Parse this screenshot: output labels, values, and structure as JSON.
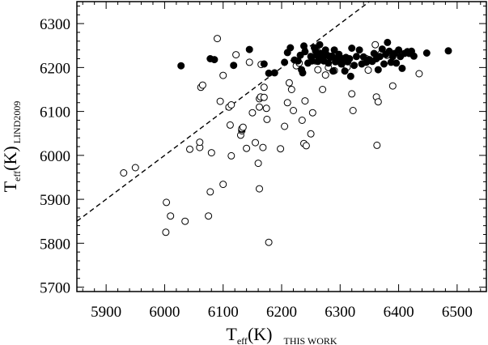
{
  "chart_data": {
    "type": "scatter",
    "xlabel": {
      "main": "T",
      "sub": "eff",
      "rest": "(K)",
      "suffix": "THIS WORK"
    },
    "ylabel": {
      "main": "T",
      "sub": "eff",
      "rest": "(K)",
      "suffix": "LIND2009"
    },
    "xlim": [
      5850,
      6550
    ],
    "ylim": [
      5690,
      6350
    ],
    "xticks": [
      5900,
      6000,
      6100,
      6200,
      6300,
      6400,
      6500
    ],
    "yticks": [
      5700,
      5800,
      5900,
      6000,
      6100,
      6200,
      6300
    ],
    "grid": false,
    "reference_line": {
      "style": "dashed",
      "slope": 1,
      "intercept": 0
    },
    "series": [
      {
        "marker": "open-circle",
        "points": [
          [
            5930,
            5960
          ],
          [
            5950,
            5972
          ],
          [
            6002,
            5825
          ],
          [
            6003,
            5893
          ],
          [
            6010,
            5862
          ],
          [
            6035,
            5850
          ],
          [
            6043,
            6014
          ],
          [
            6060,
            6018
          ],
          [
            6060,
            6030
          ],
          [
            6062,
            6155
          ],
          [
            6065,
            6160
          ],
          [
            6075,
            5862
          ],
          [
            6078,
            5917
          ],
          [
            6080,
            6006
          ],
          [
            6090,
            6266
          ],
          [
            6095,
            6123
          ],
          [
            6100,
            6182
          ],
          [
            6100,
            5934
          ],
          [
            6110,
            6110
          ],
          [
            6112,
            6069
          ],
          [
            6114,
            6115
          ],
          [
            6114,
            5999
          ],
          [
            6122,
            6229
          ],
          [
            6130,
            6046
          ],
          [
            6132,
            6056
          ],
          [
            6132,
            6059
          ],
          [
            6132,
            6061
          ],
          [
            6134,
            6064
          ],
          [
            6140,
            6016
          ],
          [
            6145,
            6212
          ],
          [
            6150,
            6097
          ],
          [
            6155,
            6029
          ],
          [
            6160,
            5982
          ],
          [
            6162,
            6129
          ],
          [
            6162,
            6110
          ],
          [
            6162,
            5924
          ],
          [
            6164,
            6133
          ],
          [
            6165,
            6207
          ],
          [
            6168,
            6018
          ],
          [
            6170,
            6155
          ],
          [
            6170,
            6132
          ],
          [
            6174,
            6107
          ],
          [
            6175,
            6082
          ],
          [
            6178,
            5802
          ],
          [
            6198,
            6015
          ],
          [
            6205,
            6066
          ],
          [
            6210,
            6120
          ],
          [
            6213,
            6165
          ],
          [
            6217,
            6150
          ],
          [
            6220,
            6102
          ],
          [
            6225,
            6204
          ],
          [
            6230,
            6210
          ],
          [
            6235,
            6080
          ],
          [
            6238,
            6027
          ],
          [
            6240,
            6124
          ],
          [
            6242,
            6022
          ],
          [
            6250,
            6049
          ],
          [
            6253,
            6097
          ],
          [
            6258,
            6215
          ],
          [
            6260,
            6238
          ],
          [
            6262,
            6195
          ],
          [
            6270,
            6150
          ],
          [
            6275,
            6183
          ],
          [
            6280,
            6200
          ],
          [
            6290,
            6193
          ],
          [
            6305,
            6208
          ],
          [
            6312,
            6201
          ],
          [
            6320,
            6140
          ],
          [
            6322,
            6102
          ],
          [
            6345,
            6220
          ],
          [
            6348,
            6194
          ],
          [
            6360,
            6252
          ],
          [
            6362,
            6133
          ],
          [
            6363,
            6023
          ],
          [
            6365,
            6122
          ],
          [
            6370,
            6232
          ],
          [
            6380,
            6228
          ],
          [
            6390,
            6158
          ],
          [
            6435,
            6186
          ]
        ]
      },
      {
        "marker": "filled-circle",
        "points": [
          [
            6028,
            6204
          ],
          [
            6078,
            6220
          ],
          [
            6085,
            6218
          ],
          [
            6118,
            6205
          ],
          [
            6145,
            6241
          ],
          [
            6170,
            6208
          ],
          [
            6178,
            6187
          ],
          [
            6188,
            6188
          ],
          [
            6205,
            6212
          ],
          [
            6210,
            6234
          ],
          [
            6215,
            6245
          ],
          [
            6222,
            6217
          ],
          [
            6228,
            6215
          ],
          [
            6232,
            6228
          ],
          [
            6234,
            6195
          ],
          [
            6236,
            6188
          ],
          [
            6238,
            6249
          ],
          [
            6240,
            6236
          ],
          [
            6245,
            6210
          ],
          [
            6250,
            6225
          ],
          [
            6252,
            6215
          ],
          [
            6256,
            6245
          ],
          [
            6258,
            6238
          ],
          [
            6260,
            6228
          ],
          [
            6262,
            6214
          ],
          [
            6265,
            6252
          ],
          [
            6267,
            6232
          ],
          [
            6270,
            6220
          ],
          [
            6272,
            6215
          ],
          [
            6275,
            6240
          ],
          [
            6278,
            6228
          ],
          [
            6280,
            6210
          ],
          [
            6283,
            6223
          ],
          [
            6286,
            6226
          ],
          [
            6288,
            6192
          ],
          [
            6290,
            6240
          ],
          [
            6292,
            6213
          ],
          [
            6295,
            6220
          ],
          [
            6298,
            6230
          ],
          [
            6302,
            6208
          ],
          [
            6305,
            6220
          ],
          [
            6308,
            6192
          ],
          [
            6310,
            6223
          ],
          [
            6313,
            6213
          ],
          [
            6316,
            6220
          ],
          [
            6318,
            6180
          ],
          [
            6320,
            6244
          ],
          [
            6324,
            6205
          ],
          [
            6328,
            6225
          ],
          [
            6333,
            6240
          ],
          [
            6337,
            6208
          ],
          [
            6340,
            6224
          ],
          [
            6345,
            6212
          ],
          [
            6350,
            6218
          ],
          [
            6355,
            6214
          ],
          [
            6358,
            6232
          ],
          [
            6362,
            6220
          ],
          [
            6365,
            6195
          ],
          [
            6368,
            6225
          ],
          [
            6372,
            6242
          ],
          [
            6375,
            6208
          ],
          [
            6378,
            6230
          ],
          [
            6381,
            6257
          ],
          [
            6384,
            6237
          ],
          [
            6387,
            6212
          ],
          [
            6390,
            6225
          ],
          [
            6393,
            6232
          ],
          [
            6396,
            6210
          ],
          [
            6400,
            6240
          ],
          [
            6403,
            6225
          ],
          [
            6406,
            6198
          ],
          [
            6410,
            6232
          ],
          [
            6415,
            6236
          ],
          [
            6418,
            6232
          ],
          [
            6422,
            6237
          ],
          [
            6426,
            6226
          ],
          [
            6448,
            6233
          ],
          [
            6485,
            6238
          ]
        ]
      }
    ]
  }
}
